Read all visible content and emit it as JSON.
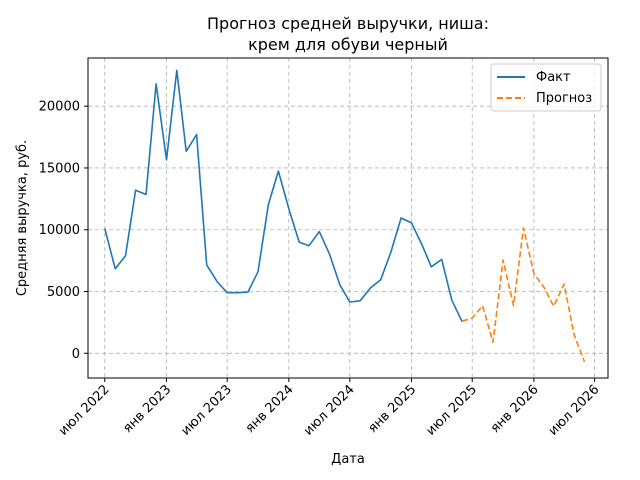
{
  "chart_data": {
    "type": "line",
    "title_lines": [
      "Прогноз средней выручки, ниша:",
      "крем для обуви черный"
    ],
    "xlabel": "Дата",
    "ylabel": "Средняя выручка, руб.",
    "grid": true,
    "legend_position": "top-right",
    "xlim": [
      "2022-05-12",
      "2026-08-10"
    ],
    "ylim": [
      -2000,
      23900
    ],
    "y_ticks": [
      0,
      5000,
      10000,
      15000,
      20000
    ],
    "x_ticks": [
      {
        "date": "2022-07-01",
        "label": "июл 2022"
      },
      {
        "date": "2023-01-01",
        "label": "янв 2023"
      },
      {
        "date": "2023-07-01",
        "label": "июл 2023"
      },
      {
        "date": "2024-01-01",
        "label": "янв 2024"
      },
      {
        "date": "2024-07-01",
        "label": "июл 2024"
      },
      {
        "date": "2025-01-01",
        "label": "янв 2025"
      },
      {
        "date": "2025-07-01",
        "label": "июл 2025"
      },
      {
        "date": "2026-01-01",
        "label": "янв 2026"
      },
      {
        "date": "2026-07-01",
        "label": "июл 2026"
      }
    ],
    "series": [
      {
        "name": "Факт",
        "color": "#1f77b4",
        "style": "solid",
        "points": [
          {
            "x": "2022-07-01",
            "y": 10100
          },
          {
            "x": "2022-08-01",
            "y": 6850
          },
          {
            "x": "2022-09-01",
            "y": 7900
          },
          {
            "x": "2022-10-01",
            "y": 13200
          },
          {
            "x": "2022-11-01",
            "y": 12850
          },
          {
            "x": "2022-12-01",
            "y": 21800
          },
          {
            "x": "2023-01-01",
            "y": 15650
          },
          {
            "x": "2023-02-01",
            "y": 22900
          },
          {
            "x": "2023-03-01",
            "y": 16350
          },
          {
            "x": "2023-04-01",
            "y": 17700
          },
          {
            "x": "2023-05-01",
            "y": 7150
          },
          {
            "x": "2023-06-01",
            "y": 5800
          },
          {
            "x": "2023-07-01",
            "y": 4900
          },
          {
            "x": "2023-08-01",
            "y": 4900
          },
          {
            "x": "2023-09-01",
            "y": 4950
          },
          {
            "x": "2023-10-01",
            "y": 6600
          },
          {
            "x": "2023-11-01",
            "y": 12050
          },
          {
            "x": "2023-12-01",
            "y": 14750
          },
          {
            "x": "2024-01-01",
            "y": 11700
          },
          {
            "x": "2024-02-01",
            "y": 9000
          },
          {
            "x": "2024-03-01",
            "y": 8700
          },
          {
            "x": "2024-04-01",
            "y": 9850
          },
          {
            "x": "2024-05-01",
            "y": 8050
          },
          {
            "x": "2024-06-01",
            "y": 5550
          },
          {
            "x": "2024-07-01",
            "y": 4150
          },
          {
            "x": "2024-08-01",
            "y": 4250
          },
          {
            "x": "2024-09-01",
            "y": 5300
          },
          {
            "x": "2024-10-01",
            "y": 5950
          },
          {
            "x": "2024-11-01",
            "y": 8250
          },
          {
            "x": "2024-12-01",
            "y": 10950
          },
          {
            "x": "2025-01-01",
            "y": 10550
          },
          {
            "x": "2025-02-01",
            "y": 8800
          },
          {
            "x": "2025-03-01",
            "y": 7000
          },
          {
            "x": "2025-04-01",
            "y": 7600
          },
          {
            "x": "2025-05-01",
            "y": 4300
          },
          {
            "x": "2025-06-01",
            "y": 2550
          }
        ]
      },
      {
        "name": "Прогноз",
        "color": "#ff7f0e",
        "style": "dashed",
        "points": [
          {
            "x": "2025-06-01",
            "y": 2600
          },
          {
            "x": "2025-07-01",
            "y": 2850
          },
          {
            "x": "2025-08-01",
            "y": 3850
          },
          {
            "x": "2025-09-01",
            "y": 900
          },
          {
            "x": "2025-10-01",
            "y": 7550
          },
          {
            "x": "2025-11-01",
            "y": 3850
          },
          {
            "x": "2025-12-01",
            "y": 10150
          },
          {
            "x": "2026-01-01",
            "y": 6450
          },
          {
            "x": "2026-02-01",
            "y": 5300
          },
          {
            "x": "2026-03-01",
            "y": 3800
          },
          {
            "x": "2026-04-01",
            "y": 5600
          },
          {
            "x": "2026-05-01",
            "y": 1500
          },
          {
            "x": "2026-06-01",
            "y": -700
          }
        ]
      }
    ]
  }
}
